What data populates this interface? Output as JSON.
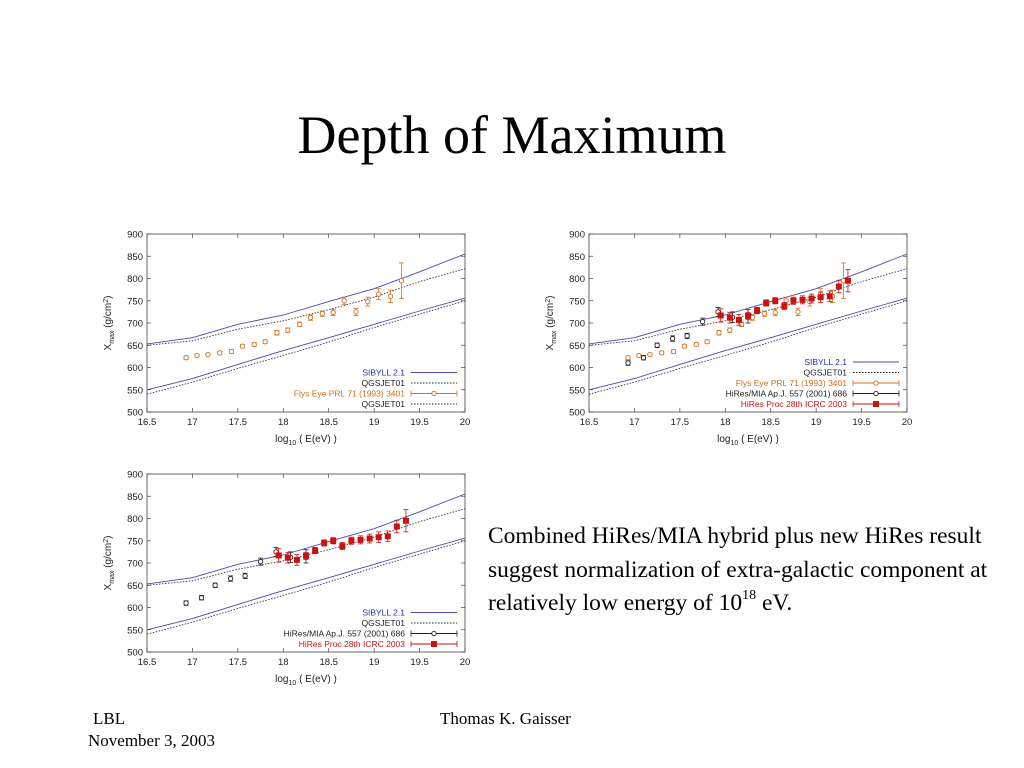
{
  "slide": {
    "title": "Depth of Maximum",
    "caption": {
      "text": "Combined HiRes/MIA hybrid plus new HiRes result suggest normalization of extra-galactic component at relatively low energy of 10",
      "superscript": "18",
      "suffix": " eV."
    },
    "footer": {
      "org": "LBL",
      "date": "November 3, 2003",
      "author": "Thomas K. Gaisser"
    }
  },
  "chart_data": [
    {
      "type": "scatter",
      "xlabel": {
        "main": "log",
        "sub": "10",
        "rest": " ( E(eV) )"
      },
      "ylabel": {
        "main": "X",
        "sub": "max",
        "unit": "(g/cm",
        "unit_sup": "2",
        "unit_end": ")"
      },
      "xlim": [
        16.5,
        20
      ],
      "ylim": [
        500,
        900
      ],
      "xticks": [
        "16.5",
        "17",
        "17.5",
        "18",
        "18.5",
        "19",
        "19.5",
        "20"
      ],
      "yticks": [
        "500",
        "550",
        "600",
        "650",
        "700",
        "750",
        "800",
        "850",
        "900"
      ],
      "legend_position": "bottom-right",
      "series": [
        {
          "name": "SIBYLL 2.1",
          "kind": "band",
          "style": "solid",
          "color": "#4b4bb0",
          "upper": [
            [
              16.5,
              653
            ],
            [
              17,
              667
            ],
            [
              17.5,
              697
            ],
            [
              18,
              718
            ],
            [
              18.5,
              748
            ],
            [
              19,
              777
            ],
            [
              19.5,
              815
            ],
            [
              20,
              855
            ]
          ],
          "lower": [
            [
              16.5,
              550
            ],
            [
              17,
              575
            ],
            [
              17.5,
              607
            ],
            [
              18,
              638
            ],
            [
              18.5,
              667
            ],
            [
              19,
              697
            ],
            [
              19.5,
              727
            ],
            [
              20,
              756
            ]
          ]
        },
        {
          "name": "QGSJET01",
          "kind": "band",
          "style": "dotted",
          "color": "#333333",
          "upper": [
            [
              16.5,
              650
            ],
            [
              17,
              660
            ],
            [
              17.5,
              686
            ],
            [
              18,
              705
            ],
            [
              18.5,
              730
            ],
            [
              19,
              758
            ],
            [
              19.5,
              793
            ],
            [
              20,
              822
            ]
          ],
          "lower": [
            [
              16.5,
              540
            ],
            [
              17,
              567
            ],
            [
              17.5,
              598
            ],
            [
              18,
              627
            ],
            [
              18.5,
              657
            ],
            [
              19,
              690
            ],
            [
              19.5,
              720
            ],
            [
              20,
              750
            ]
          ]
        },
        {
          "name": "Flys Eye PRL 71 (1993) 3401",
          "kind": "points",
          "marker": "open-circle",
          "color": "#d07020",
          "points": [
            [
              16.93,
              622,
              4
            ],
            [
              17.05,
              627,
              3
            ],
            [
              17.17,
              629,
              3
            ],
            [
              17.3,
              633,
              3
            ],
            [
              17.43,
              636,
              4
            ],
            [
              17.55,
              648,
              4
            ],
            [
              17.68,
              652,
              4
            ],
            [
              17.8,
              658,
              4
            ],
            [
              17.93,
              678,
              5
            ],
            [
              18.05,
              684,
              5
            ],
            [
              18.18,
              697,
              5
            ],
            [
              18.3,
              712,
              6
            ],
            [
              18.43,
              721,
              6
            ],
            [
              18.55,
              724,
              7
            ],
            [
              18.67,
              750,
              8
            ],
            [
              18.8,
              725,
              8
            ],
            [
              18.93,
              748,
              10
            ],
            [
              19.05,
              765,
              12
            ],
            [
              19.18,
              760,
              14
            ],
            [
              19.3,
              795,
              40
            ]
          ]
        },
        {
          "name": "QGSJET01",
          "kind": "legend-only"
        }
      ]
    },
    {
      "type": "scatter",
      "xlabel": {
        "main": "log",
        "sub": "10",
        "rest": " ( E(eV) )"
      },
      "ylabel": {
        "main": "X",
        "sub": "max",
        "unit": "(g/cm",
        "unit_sup": "2",
        "unit_end": ")"
      },
      "xlim": [
        16.5,
        20
      ],
      "ylim": [
        500,
        900
      ],
      "xticks": [
        "16.5",
        "17",
        "17.5",
        "18",
        "18.5",
        "19",
        "19.5",
        "20"
      ],
      "yticks": [
        "500",
        "550",
        "600",
        "650",
        "700",
        "750",
        "800",
        "850",
        "900"
      ],
      "legend_position": "bottom-right",
      "series": [
        {
          "name": "SIBYLL 2.1",
          "kind": "band",
          "style": "solid",
          "color": "#4b4bb0",
          "upper": [
            [
              16.5,
              653
            ],
            [
              17,
              667
            ],
            [
              17.5,
              697
            ],
            [
              18,
              718
            ],
            [
              18.5,
              748
            ],
            [
              19,
              777
            ],
            [
              19.5,
              815
            ],
            [
              20,
              855
            ]
          ],
          "lower": [
            [
              16.5,
              550
            ],
            [
              17,
              575
            ],
            [
              17.5,
              607
            ],
            [
              18,
              638
            ],
            [
              18.5,
              667
            ],
            [
              19,
              697
            ],
            [
              19.5,
              727
            ],
            [
              20,
              756
            ]
          ]
        },
        {
          "name": "QGSJET01",
          "kind": "band",
          "style": "dotted",
          "color": "#333333",
          "upper": [
            [
              16.5,
              650
            ],
            [
              17,
              660
            ],
            [
              17.5,
              686
            ],
            [
              18,
              705
            ],
            [
              18.5,
              730
            ],
            [
              19,
              758
            ],
            [
              19.5,
              793
            ],
            [
              20,
              822
            ]
          ],
          "lower": [
            [
              16.5,
              540
            ],
            [
              17,
              567
            ],
            [
              17.5,
              598
            ],
            [
              18,
              627
            ],
            [
              18.5,
              657
            ],
            [
              19,
              690
            ],
            [
              19.5,
              720
            ],
            [
              20,
              750
            ]
          ]
        },
        {
          "name": "Flys Eye PRL 71 (1993) 3401",
          "kind": "points",
          "marker": "open-circle",
          "color": "#d07020",
          "points": [
            [
              16.93,
              622,
              4
            ],
            [
              17.05,
              627,
              3
            ],
            [
              17.17,
              629,
              3
            ],
            [
              17.3,
              633,
              3
            ],
            [
              17.43,
              636,
              4
            ],
            [
              17.55,
              648,
              4
            ],
            [
              17.68,
              652,
              4
            ],
            [
              17.8,
              658,
              4
            ],
            [
              17.93,
              678,
              5
            ],
            [
              18.05,
              684,
              5
            ],
            [
              18.18,
              697,
              5
            ],
            [
              18.3,
              712,
              6
            ],
            [
              18.43,
              721,
              6
            ],
            [
              18.55,
              724,
              7
            ],
            [
              18.67,
              750,
              8
            ],
            [
              18.8,
              725,
              8
            ],
            [
              18.93,
              748,
              10
            ],
            [
              19.05,
              765,
              12
            ],
            [
              19.18,
              760,
              14
            ],
            [
              19.3,
              795,
              40
            ]
          ]
        },
        {
          "name": "HiRes/MIA Ap.J. 557 (2001) 686",
          "kind": "points",
          "marker": "open-circle",
          "color": "#222222",
          "points": [
            [
              16.93,
              610,
              5
            ],
            [
              17.1,
              622,
              5
            ],
            [
              17.25,
              650,
              5
            ],
            [
              17.42,
              665,
              6
            ],
            [
              17.58,
              671,
              6
            ],
            [
              17.75,
              703,
              8
            ],
            [
              17.92,
              725,
              10
            ],
            [
              18.08,
              713,
              12
            ],
            [
              18.25,
              715,
              15
            ]
          ]
        },
        {
          "name": "HiRes Proc 28th ICRC 2003",
          "kind": "points",
          "marker": "filled-square",
          "color": "#cc1111",
          "points": [
            [
              17.95,
              717,
              15
            ],
            [
              18.05,
              712,
              12
            ],
            [
              18.15,
              707,
              12
            ],
            [
              18.25,
              716,
              8
            ],
            [
              18.35,
              728,
              7
            ],
            [
              18.45,
              745,
              7
            ],
            [
              18.55,
              750,
              7
            ],
            [
              18.65,
              738,
              8
            ],
            [
              18.75,
              750,
              8
            ],
            [
              18.85,
              752,
              9
            ],
            [
              18.95,
              755,
              10
            ],
            [
              19.05,
              758,
              12
            ],
            [
              19.15,
              760,
              12
            ],
            [
              19.25,
              782,
              14
            ],
            [
              19.35,
              795,
              25
            ]
          ]
        }
      ]
    },
    {
      "type": "scatter",
      "xlabel": {
        "main": "log",
        "sub": "10",
        "rest": " ( E(eV) )"
      },
      "ylabel": {
        "main": "X",
        "sub": "max",
        "unit": "(g/cm",
        "unit_sup": "2",
        "unit_end": ")"
      },
      "xlim": [
        16.5,
        20
      ],
      "ylim": [
        500,
        900
      ],
      "xticks": [
        "16.5",
        "17",
        "17.5",
        "18",
        "18.5",
        "19",
        "19.5",
        "20"
      ],
      "yticks": [
        "500",
        "550",
        "600",
        "650",
        "700",
        "750",
        "800",
        "850",
        "900"
      ],
      "legend_position": "bottom-right",
      "series": [
        {
          "name": "SIBYLL 2.1",
          "kind": "band",
          "style": "solid",
          "color": "#4b4bb0",
          "upper": [
            [
              16.5,
              653
            ],
            [
              17,
              667
            ],
            [
              17.5,
              697
            ],
            [
              18,
              718
            ],
            [
              18.5,
              748
            ],
            [
              19,
              777
            ],
            [
              19.5,
              815
            ],
            [
              20,
              855
            ]
          ],
          "lower": [
            [
              16.5,
              550
            ],
            [
              17,
              575
            ],
            [
              17.5,
              607
            ],
            [
              18,
              638
            ],
            [
              18.5,
              667
            ],
            [
              19,
              697
            ],
            [
              19.5,
              727
            ],
            [
              20,
              756
            ]
          ]
        },
        {
          "name": "QGSJET01",
          "kind": "band",
          "style": "dotted",
          "color": "#333333",
          "upper": [
            [
              16.5,
              650
            ],
            [
              17,
              660
            ],
            [
              17.5,
              686
            ],
            [
              18,
              705
            ],
            [
              18.5,
              730
            ],
            [
              19,
              758
            ],
            [
              19.5,
              793
            ],
            [
              20,
              822
            ]
          ],
          "lower": [
            [
              16.5,
              540
            ],
            [
              17,
              567
            ],
            [
              17.5,
              598
            ],
            [
              18,
              627
            ],
            [
              18.5,
              657
            ],
            [
              19,
              690
            ],
            [
              19.5,
              720
            ],
            [
              20,
              750
            ]
          ]
        },
        {
          "name": "HiRes/MIA Ap.J. 557 (2001) 686",
          "kind": "points",
          "marker": "open-circle",
          "color": "#222222",
          "points": [
            [
              16.93,
              610,
              5
            ],
            [
              17.1,
              622,
              5
            ],
            [
              17.25,
              650,
              5
            ],
            [
              17.42,
              665,
              6
            ],
            [
              17.58,
              671,
              6
            ],
            [
              17.75,
              703,
              8
            ],
            [
              17.92,
              725,
              10
            ],
            [
              18.08,
              713,
              12
            ],
            [
              18.25,
              715,
              15
            ]
          ]
        },
        {
          "name": "HiRes Proc 28th ICRC 2003",
          "kind": "points",
          "marker": "filled-square",
          "color": "#cc1111",
          "points": [
            [
              17.95,
              717,
              15
            ],
            [
              18.05,
              712,
              12
            ],
            [
              18.15,
              707,
              12
            ],
            [
              18.25,
              716,
              8
            ],
            [
              18.35,
              728,
              7
            ],
            [
              18.45,
              745,
              7
            ],
            [
              18.55,
              750,
              7
            ],
            [
              18.65,
              738,
              8
            ],
            [
              18.75,
              750,
              8
            ],
            [
              18.85,
              752,
              9
            ],
            [
              18.95,
              755,
              10
            ],
            [
              19.05,
              758,
              12
            ],
            [
              19.15,
              760,
              12
            ],
            [
              19.25,
              782,
              14
            ],
            [
              19.35,
              795,
              25
            ]
          ]
        }
      ]
    }
  ]
}
